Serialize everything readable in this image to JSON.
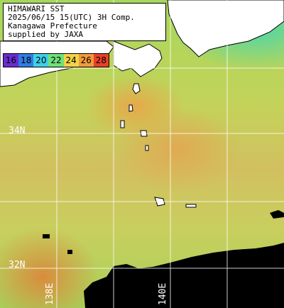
{
  "info": {
    "line1": "HIMAWARI SST",
    "line2": "2025/06/15 15(UTC) 3H Comp.",
    "line3": "Kanagawa Prefecture",
    "line4": "supplied by JAXA"
  },
  "colorbar": {
    "ticks": [
      "16",
      "18",
      "20",
      "22",
      "24",
      "26",
      "28"
    ],
    "colors": [
      "#6a2bd0",
      "#2f7de0",
      "#3fd0e8",
      "#6fe07a",
      "#f2d24a",
      "#f29a3a",
      "#e8402a"
    ]
  },
  "grid": {
    "lat_labels": [
      "34N",
      "32N"
    ],
    "lon_labels": [
      "138E",
      "140E"
    ]
  },
  "colors": {
    "land": "#ffffff",
    "no_data": "#000000",
    "grid": "#ffffff"
  }
}
